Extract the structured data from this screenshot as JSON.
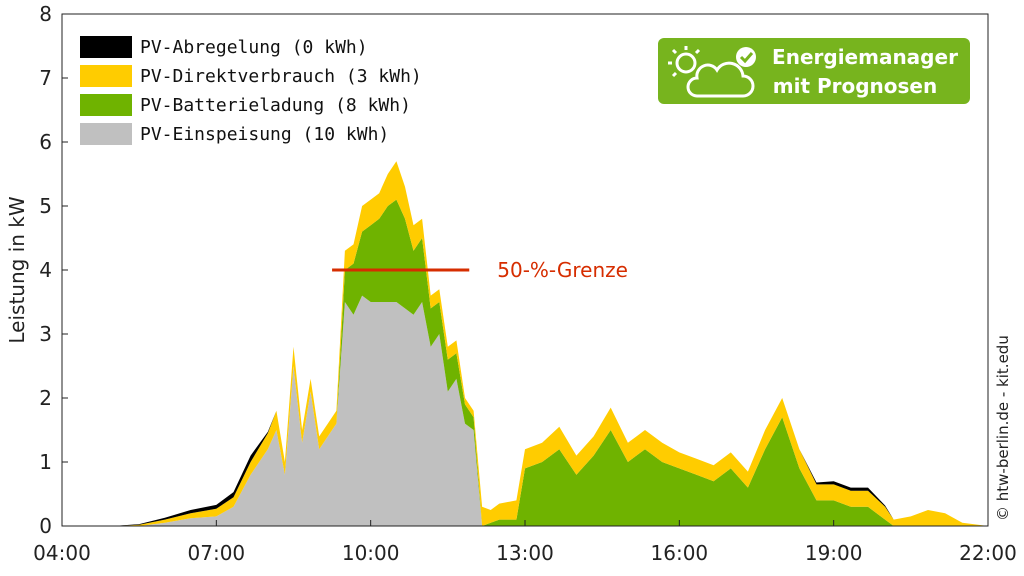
{
  "chart_data": {
    "type": "area",
    "ylabel": "Leistung in kW",
    "xlabel": "",
    "ylim": [
      0,
      8
    ],
    "xlim": [
      "04:00",
      "22:00"
    ],
    "x_ticks": [
      "04:00",
      "07:00",
      "10:00",
      "13:00",
      "16:00",
      "19:00",
      "22:00"
    ],
    "y_ticks": [
      "0",
      "1",
      "2",
      "3",
      "4",
      "5",
      "6",
      "7",
      "8"
    ],
    "stacked": true,
    "legend_position": "top-left",
    "x": [
      "04:00",
      "04:30",
      "05:00",
      "05:30",
      "06:00",
      "06:30",
      "07:00",
      "07:20",
      "07:40",
      "08:00",
      "08:10",
      "08:20",
      "08:30",
      "08:40",
      "08:50",
      "09:00",
      "09:10",
      "09:20",
      "09:30",
      "09:40",
      "09:50",
      "10:00",
      "10:10",
      "10:20",
      "10:30",
      "10:40",
      "10:50",
      "11:00",
      "11:10",
      "11:20",
      "11:30",
      "11:40",
      "11:50",
      "12:00",
      "12:10",
      "12:20",
      "12:30",
      "12:50",
      "13:00",
      "13:20",
      "13:40",
      "14:00",
      "14:20",
      "14:40",
      "15:00",
      "15:20",
      "15:40",
      "16:00",
      "16:20",
      "16:40",
      "17:00",
      "17:20",
      "17:40",
      "18:00",
      "18:20",
      "18:40",
      "19:00",
      "19:20",
      "19:40",
      "20:00",
      "20:10",
      "20:30",
      "20:50",
      "21:10",
      "21:30",
      "22:00"
    ],
    "series": [
      {
        "name": "PV-Einspeisung (10 kWh)",
        "color": "#c0c0c0",
        "values": [
          0,
          0,
          0,
          0,
          0.05,
          0.12,
          0.15,
          0.3,
          0.8,
          1.2,
          1.5,
          0.8,
          2.5,
          1.3,
          2.1,
          1.2,
          1.4,
          1.6,
          3.5,
          3.3,
          3.6,
          3.5,
          3.5,
          3.5,
          3.5,
          3.4,
          3.3,
          3.5,
          2.8,
          3.0,
          2.1,
          2.3,
          1.6,
          1.5,
          0,
          0,
          0,
          0,
          0,
          0,
          0,
          0,
          0,
          0,
          0,
          0,
          0,
          0,
          0,
          0,
          0,
          0,
          0,
          0,
          0,
          0,
          0,
          0,
          0,
          0,
          0,
          0,
          0,
          0,
          0,
          0
        ]
      },
      {
        "name": "PV-Batterieladung (8 kWh)",
        "color": "#6fb300",
        "values": [
          0,
          0,
          0,
          0,
          0,
          0,
          0,
          0,
          0,
          0,
          0,
          0,
          0,
          0,
          0,
          0,
          0,
          0,
          0.5,
          0.8,
          1.0,
          1.2,
          1.3,
          1.5,
          1.6,
          1.4,
          1.0,
          1.0,
          0.6,
          0.5,
          0.5,
          0.4,
          0.3,
          0.2,
          0,
          0.05,
          0.1,
          0.1,
          0.9,
          1.0,
          1.2,
          0.8,
          1.1,
          1.5,
          1.0,
          1.2,
          1.0,
          0.9,
          0.8,
          0.7,
          0.9,
          0.6,
          1.2,
          1.7,
          0.9,
          0.4,
          0.4,
          0.3,
          0.3,
          0.1,
          0,
          0,
          0,
          0,
          0,
          0
        ]
      },
      {
        "name": "PV-Direktverbrauch (3 kWh)",
        "color": "#ffcc00",
        "values": [
          0,
          0,
          0,
          0.02,
          0.05,
          0.08,
          0.12,
          0.15,
          0.2,
          0.25,
          0.3,
          0.2,
          0.3,
          0.2,
          0.2,
          0.2,
          0.2,
          0.2,
          0.3,
          0.3,
          0.4,
          0.4,
          0.4,
          0.5,
          0.6,
          0.5,
          0.4,
          0.3,
          0.2,
          0.2,
          0.2,
          0.2,
          0.1,
          0.1,
          0.3,
          0.2,
          0.25,
          0.3,
          0.3,
          0.3,
          0.35,
          0.3,
          0.3,
          0.35,
          0.3,
          0.3,
          0.3,
          0.25,
          0.25,
          0.25,
          0.25,
          0.25,
          0.3,
          0.3,
          0.3,
          0.25,
          0.25,
          0.25,
          0.25,
          0.2,
          0.1,
          0.15,
          0.25,
          0.2,
          0.05,
          0
        ]
      },
      {
        "name": "PV-Abregelung (0 kWh)",
        "color": "#000000",
        "values": [
          0,
          0,
          0,
          0.01,
          0.03,
          0.05,
          0.06,
          0.08,
          0.1,
          0.02,
          0,
          0,
          0,
          0,
          0,
          0,
          0,
          0,
          0,
          0,
          0,
          0,
          0,
          0,
          0,
          0,
          0,
          0,
          0,
          0,
          0,
          0,
          0,
          0,
          0,
          0,
          0,
          0,
          0,
          0,
          0,
          0,
          0,
          0,
          0,
          0,
          0,
          0,
          0,
          0,
          0,
          0,
          0,
          0,
          0,
          0.03,
          0.05,
          0.05,
          0.05,
          0.02,
          0,
          0,
          0,
          0,
          0,
          0
        ]
      }
    ],
    "annotations": [
      {
        "text": "50-%-Grenze",
        "value": 4,
        "x_start": "09:15",
        "x_end": "11:55",
        "color": "#d62d00"
      }
    ]
  },
  "badge": {
    "line1": "Energiemanager",
    "line2": "mit Prognosen",
    "color": "#77b41e",
    "icon": "sun-cloud-check-icon"
  },
  "copyright": "© htw-berlin.de - kit.edu"
}
